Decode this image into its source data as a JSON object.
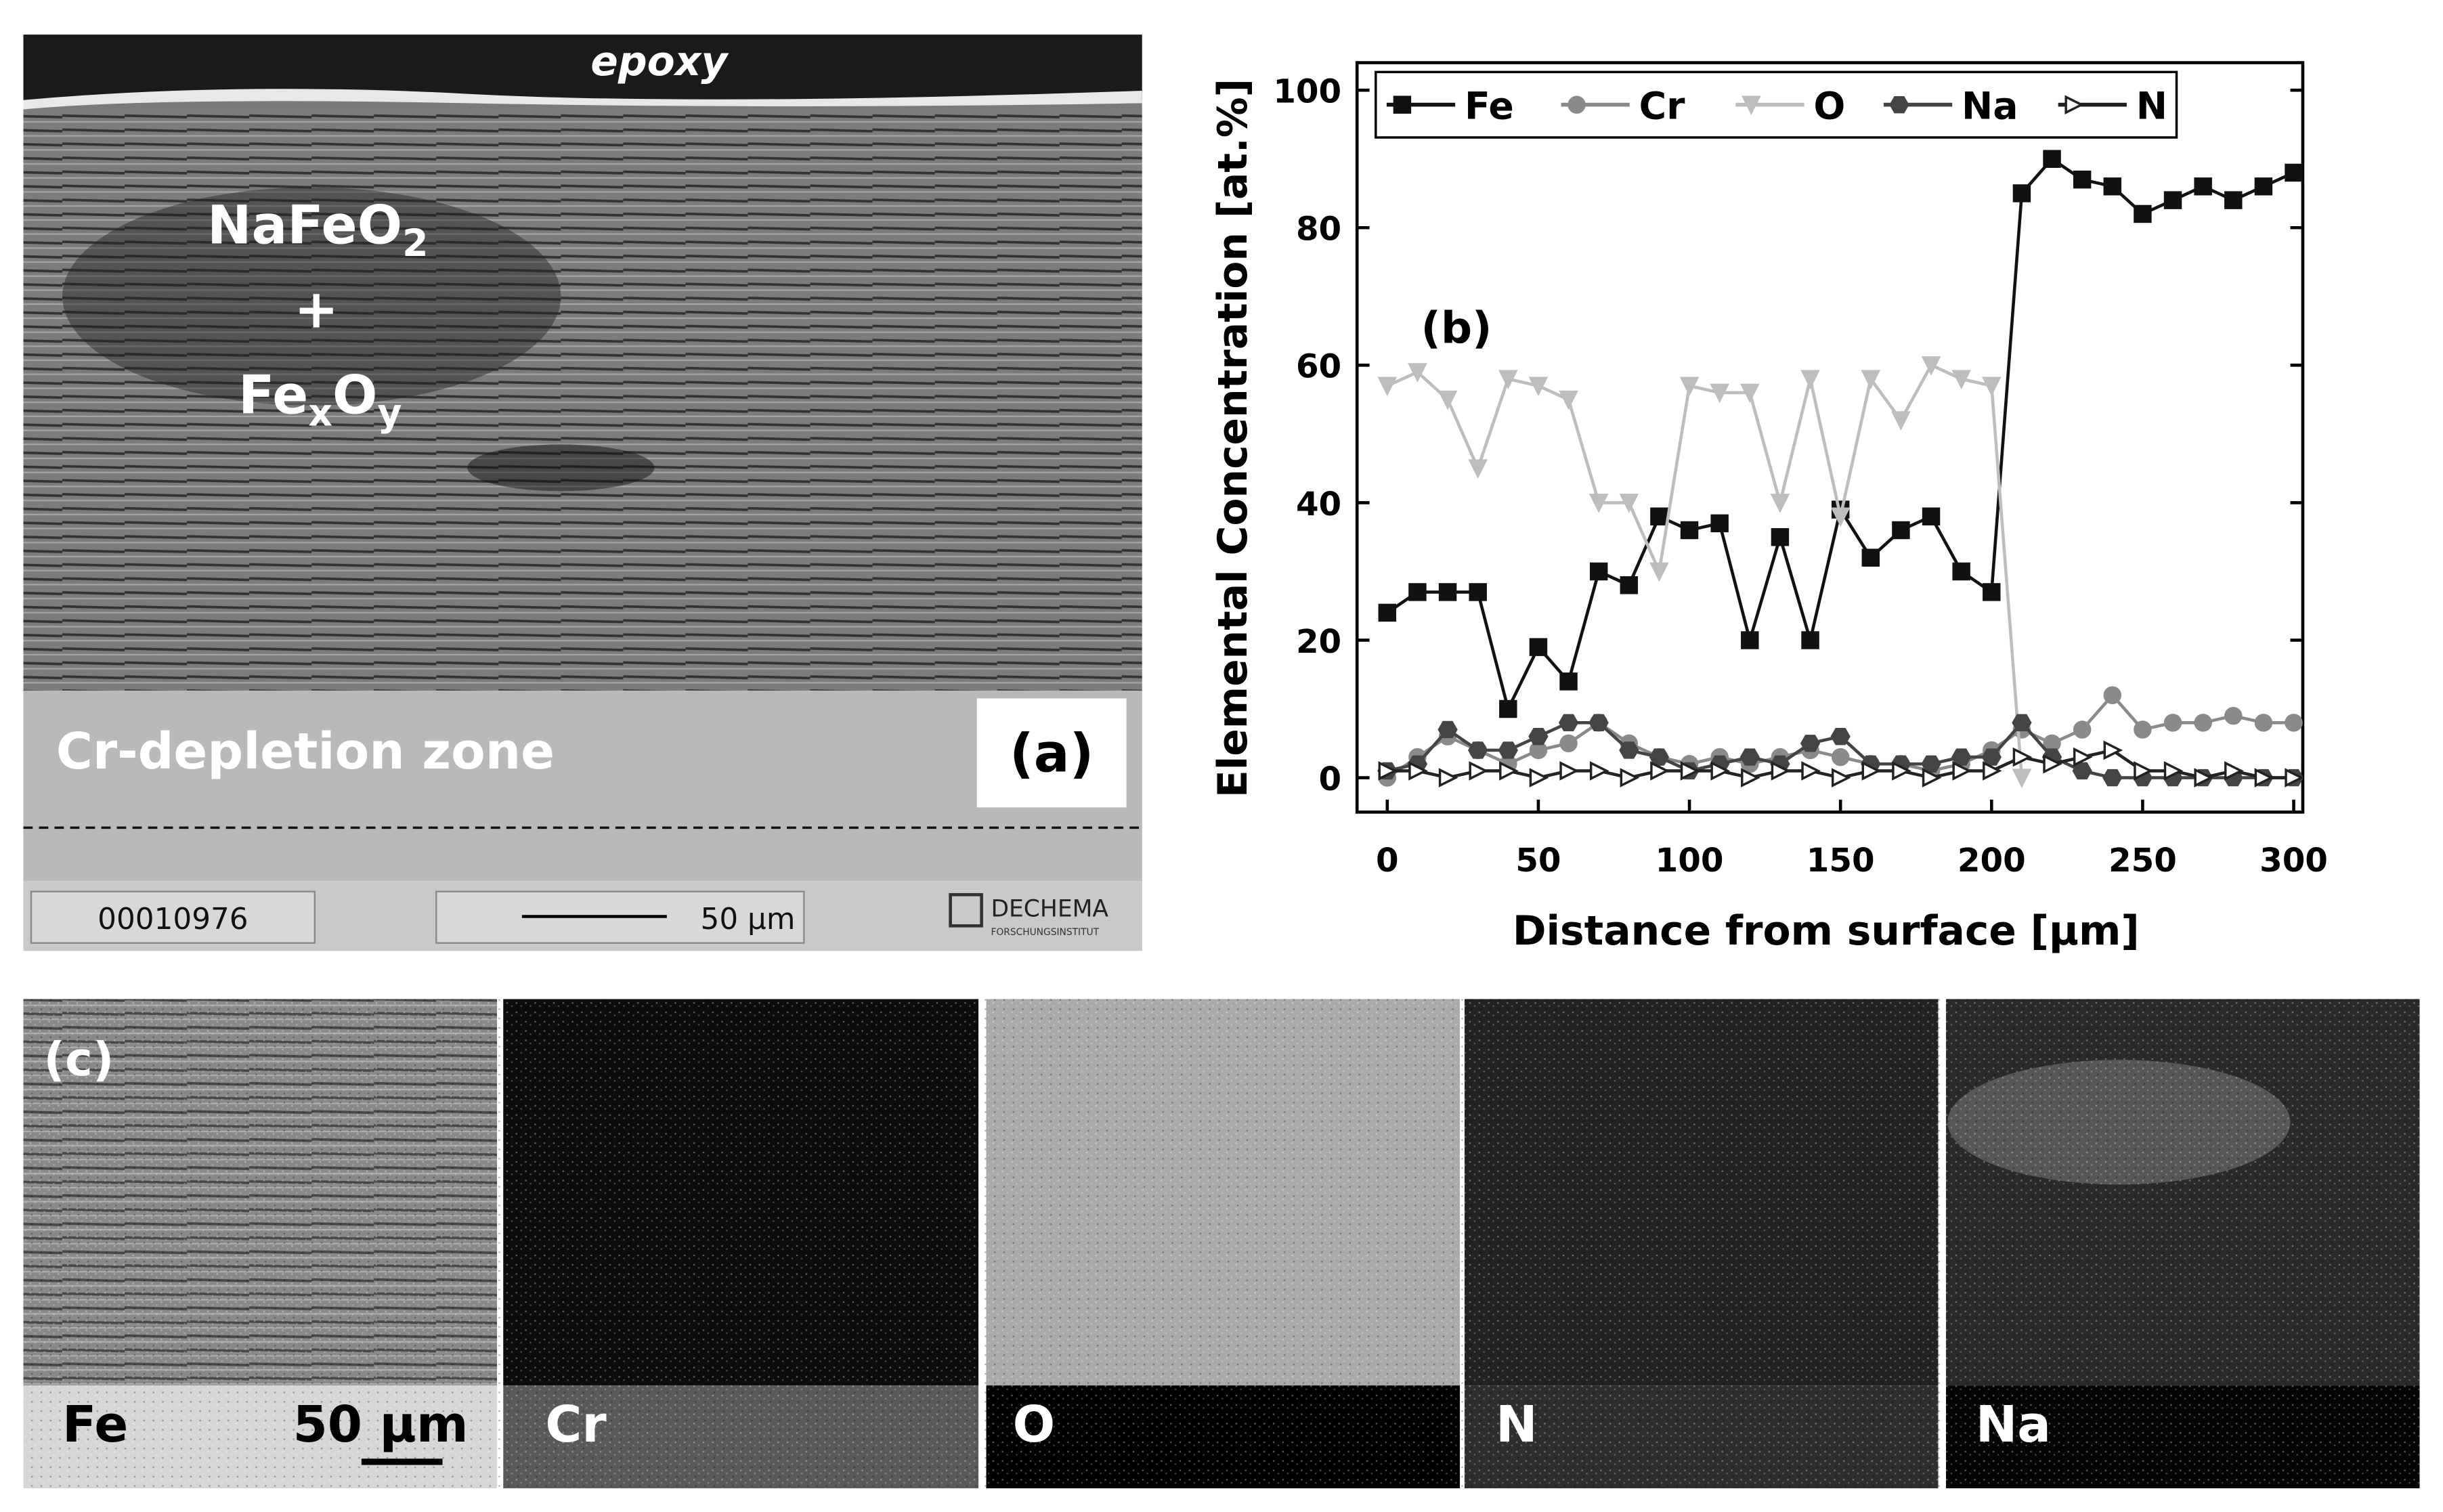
{
  "panel_a": {
    "annotation": "epoxy",
    "phase_top": {
      "main": "NaFeO",
      "sub": "2"
    },
    "plus": "+",
    "phase_bottom": {
      "a": "Fe",
      "a_sub": "x",
      "b": "O",
      "b_sub": "y"
    },
    "zone": "Cr-depletion zone",
    "label": "(a)",
    "image_id": "00010976",
    "scale_bar": "50 µm",
    "logo": "DECHEMA",
    "logo_sub": "FORSCHUNGSINSTITUT"
  },
  "panel_c": {
    "label": "(c)",
    "maps": [
      "Fe",
      "Cr",
      "O",
      "N",
      "Na"
    ],
    "scale_bar": "50 µm"
  },
  "chart_data": {
    "type": "line",
    "annotation": "(b)",
    "x_label": "Distance from surface [µm]",
    "y_label": "Elemental Concentration [at.%]",
    "x": [
      0,
      10,
      20,
      30,
      40,
      50,
      60,
      70,
      80,
      90,
      100,
      110,
      120,
      130,
      140,
      150,
      160,
      170,
      180,
      190,
      200,
      210,
      220,
      230,
      240,
      250,
      260,
      270,
      280,
      290,
      300
    ],
    "series": [
      {
        "name": "Fe",
        "color": "#111111",
        "marker": "square",
        "values": [
          24,
          27,
          27,
          27,
          10,
          19,
          14,
          30,
          28,
          38,
          36,
          37,
          20,
          35,
          20,
          39,
          32,
          36,
          38,
          30,
          27,
          85,
          90,
          87,
          86,
          82,
          84,
          86,
          84,
          86,
          88
        ]
      },
      {
        "name": "Cr",
        "color": "#8a8a8a",
        "marker": "circle",
        "values": [
          0,
          3,
          6,
          4,
          2,
          4,
          5,
          8,
          5,
          3,
          2,
          3,
          2,
          3,
          4,
          3,
          2,
          2,
          1,
          2,
          4,
          7,
          5,
          7,
          12,
          7,
          8,
          8,
          9,
          8,
          8
        ]
      },
      {
        "name": "O",
        "color": "#bdbdbd",
        "marker": "triangle-down",
        "values": [
          57,
          59,
          55,
          45,
          58,
          57,
          55,
          40,
          40,
          30,
          57,
          56,
          56,
          40,
          58,
          38,
          58,
          52,
          60,
          58,
          57,
          0,
          null,
          null,
          null,
          null,
          null,
          null,
          null,
          null,
          null
        ]
      },
      {
        "name": "Na",
        "color": "#444444",
        "marker": "hexagon",
        "values": [
          1,
          2,
          7,
          4,
          4,
          6,
          8,
          8,
          4,
          3,
          1,
          2,
          3,
          2,
          5,
          6,
          2,
          2,
          2,
          3,
          3,
          8,
          3,
          1,
          0,
          0,
          0,
          0,
          0,
          0,
          0
        ]
      },
      {
        "name": "N",
        "color": "#222222",
        "marker": "triangle-right-open",
        "values": [
          1,
          1,
          0,
          1,
          1,
          0,
          1,
          1,
          0,
          1,
          1,
          1,
          0,
          1,
          1,
          0,
          1,
          1,
          0,
          1,
          1,
          3,
          2,
          3,
          4,
          1,
          1,
          0,
          1,
          0,
          0
        ]
      }
    ],
    "xlim": [
      -10,
      303
    ],
    "ylim": [
      -5,
      104
    ],
    "xticks": [
      0,
      50,
      100,
      150,
      200,
      250,
      300
    ],
    "yticks": [
      0,
      20,
      40,
      60,
      80,
      100
    ],
    "grid": false,
    "legend": "top"
  }
}
